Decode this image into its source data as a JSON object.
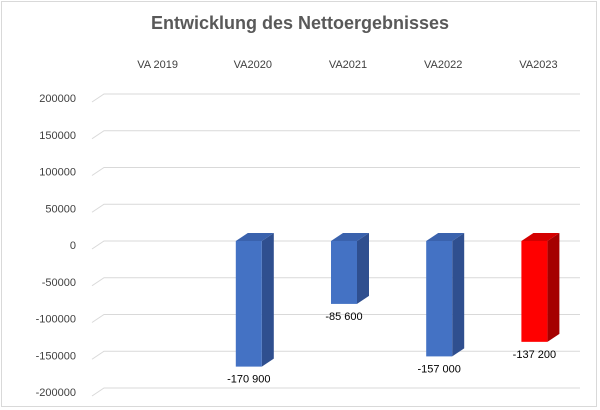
{
  "chart_data": {
    "type": "bar",
    "title": "Entwicklung des Nettoergebnisses",
    "categories": [
      "VA 2019",
      "VA2020",
      "VA2021",
      "VA2022",
      "VA2023"
    ],
    "values": [
      null,
      -170900,
      -85600,
      -157000,
      -137200
    ],
    "data_labels": [
      "",
      "-170 900",
      "-85 600",
      "-157 000",
      "-137 200"
    ],
    "ylim": [
      -200000,
      200000
    ],
    "yticks": [
      200000,
      150000,
      100000,
      50000,
      0,
      -50000,
      -100000,
      -150000,
      -200000
    ],
    "ytick_labels": [
      "200000",
      "150000",
      "100000",
      "50000",
      "0",
      "-50000",
      "-100000",
      "-150000",
      "-200000"
    ],
    "xlabel": "",
    "ylabel": "",
    "grid": true,
    "legend": "none",
    "colors": {
      "default_front": "#4472c4",
      "default_side": "#2f4f8f",
      "default_top": "#3a62ad",
      "highlight_front": "#ff0000",
      "highlight_side": "#a50000",
      "highlight_top": "#d40000",
      "gridline": "#d9d9d9"
    },
    "highlight_category": "VA2023"
  }
}
